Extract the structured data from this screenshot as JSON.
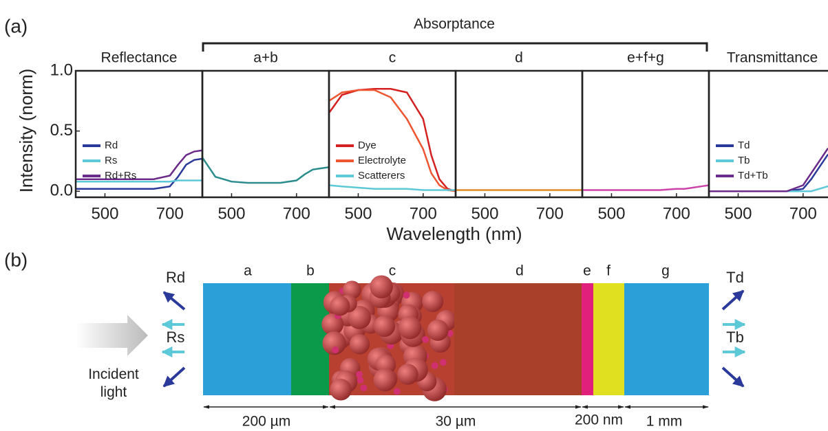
{
  "panel_labels": [
    "(a)",
    "(b)"
  ],
  "absorptance_label": "Absorptance",
  "y_label": "Intensity (norm)",
  "x_label": "Wavelength (nm)",
  "chart_data": [
    {
      "type": "line",
      "title": "Reflectance",
      "x": [
        410,
        450,
        500,
        550,
        600,
        650,
        700,
        725,
        750,
        775,
        800
      ],
      "xlim": [
        410,
        800
      ],
      "xticks": [
        500,
        700
      ],
      "ylim": [
        -0.05,
        1.0
      ],
      "yticks": [
        {
          "value": 0.0,
          "label": "0.0"
        },
        0.5,
        {
          "value": 1.0,
          "label": "1.0"
        }
      ],
      "series": [
        {
          "name": "Rd",
          "color": "#2b3a9a",
          "values": [
            0.02,
            0.02,
            0.02,
            0.02,
            0.02,
            0.02,
            0.04,
            0.12,
            0.22,
            0.26,
            0.27
          ]
        },
        {
          "name": "Rs",
          "color": "#5cc8d8",
          "values": [
            0.08,
            0.08,
            0.08,
            0.08,
            0.08,
            0.08,
            0.08,
            0.09,
            0.09,
            0.09,
            0.09
          ]
        },
        {
          "name": "Rd+Rs",
          "color": "#6a2a8a",
          "values": [
            0.1,
            0.1,
            0.1,
            0.1,
            0.1,
            0.1,
            0.13,
            0.22,
            0.3,
            0.33,
            0.34
          ]
        }
      ]
    },
    {
      "type": "line",
      "title": "a+b",
      "x": [
        410,
        450,
        500,
        550,
        600,
        650,
        700,
        725,
        750,
        775,
        800
      ],
      "xlim": [
        410,
        800
      ],
      "xticks": [
        500,
        700
      ],
      "ylim": [
        -0.05,
        1.0
      ],
      "series": [
        {
          "color": "#2a8c8c",
          "values": [
            0.28,
            0.12,
            0.08,
            0.07,
            0.07,
            0.07,
            0.09,
            0.14,
            0.18,
            0.19,
            0.2
          ]
        }
      ]
    },
    {
      "type": "line",
      "title": "c",
      "x": [
        410,
        450,
        500,
        550,
        600,
        650,
        700,
        725,
        750,
        775,
        800
      ],
      "xlim": [
        410,
        800
      ],
      "xticks": [
        500,
        700
      ],
      "ylim": [
        -0.05,
        1.0
      ],
      "series": [
        {
          "name": "Dye",
          "color": "#d42020",
          "values": [
            0.65,
            0.8,
            0.84,
            0.85,
            0.85,
            0.82,
            0.6,
            0.3,
            0.1,
            0.02,
            0.0
          ]
        },
        {
          "name": "Electrolyte",
          "color": "#ee5530",
          "values": [
            0.75,
            0.82,
            0.84,
            0.84,
            0.78,
            0.6,
            0.35,
            0.15,
            0.05,
            0.01,
            0.0
          ]
        },
        {
          "name": "Scatterers",
          "color": "#5cc8d8",
          "values": [
            0.05,
            0.04,
            0.03,
            0.02,
            0.02,
            0.02,
            0.01,
            0.01,
            0.01,
            0.01,
            0.01
          ]
        }
      ]
    },
    {
      "type": "line",
      "title": "d",
      "x": [
        410,
        450,
        500,
        550,
        600,
        650,
        700,
        725,
        750,
        775,
        800
      ],
      "xlim": [
        410,
        800
      ],
      "xticks": [
        500,
        700
      ],
      "ylim": [
        -0.05,
        1.0
      ],
      "series": [
        {
          "color": "#e08a20",
          "values": [
            0.01,
            0.01,
            0.01,
            0.01,
            0.01,
            0.01,
            0.01,
            0.01,
            0.01,
            0.01,
            0.01
          ]
        }
      ]
    },
    {
      "type": "line",
      "title": "e+f+g",
      "x": [
        410,
        450,
        500,
        550,
        600,
        650,
        700,
        725,
        750,
        775,
        800
      ],
      "xlim": [
        410,
        800
      ],
      "xticks": [
        500,
        700
      ],
      "ylim": [
        -0.05,
        1.0
      ],
      "series": [
        {
          "color": "#cc44aa",
          "values": [
            0.01,
            0.01,
            0.01,
            0.01,
            0.01,
            0.01,
            0.02,
            0.02,
            0.03,
            0.04,
            0.05
          ]
        }
      ]
    },
    {
      "type": "line",
      "title": "Transmittance",
      "x": [
        410,
        450,
        500,
        550,
        600,
        650,
        700,
        725,
        750,
        775,
        800
      ],
      "xlim": [
        410,
        800
      ],
      "xticks": [
        500,
        700
      ],
      "ylim": [
        -0.05,
        1.0
      ],
      "series": [
        {
          "name": "Td",
          "color": "#2b3a9a",
          "values": [
            0.0,
            0.0,
            0.0,
            0.0,
            0.0,
            0.0,
            0.02,
            0.1,
            0.2,
            0.3,
            0.35
          ]
        },
        {
          "name": "Tb",
          "color": "#5cc8d8",
          "values": [
            0.0,
            0.0,
            0.0,
            0.0,
            0.0,
            0.0,
            0.0,
            0.0,
            0.02,
            0.04,
            0.06
          ]
        },
        {
          "name": "Td+Tb",
          "color": "#6a2a8a",
          "values": [
            0.0,
            0.0,
            0.0,
            0.0,
            0.0,
            0.0,
            0.05,
            0.15,
            0.25,
            0.35,
            0.4
          ]
        }
      ]
    }
  ],
  "diagram": {
    "layers": [
      "a",
      "b",
      "c",
      "d",
      "e",
      "f",
      "g"
    ],
    "scales": [
      "200 µm",
      "30 µm",
      "200 nm",
      "1 mm"
    ],
    "incident": "Incident light",
    "reflect_labels": [
      "Rd",
      "Rs"
    ],
    "transmit_labels": [
      "Td",
      "Tb"
    ]
  }
}
